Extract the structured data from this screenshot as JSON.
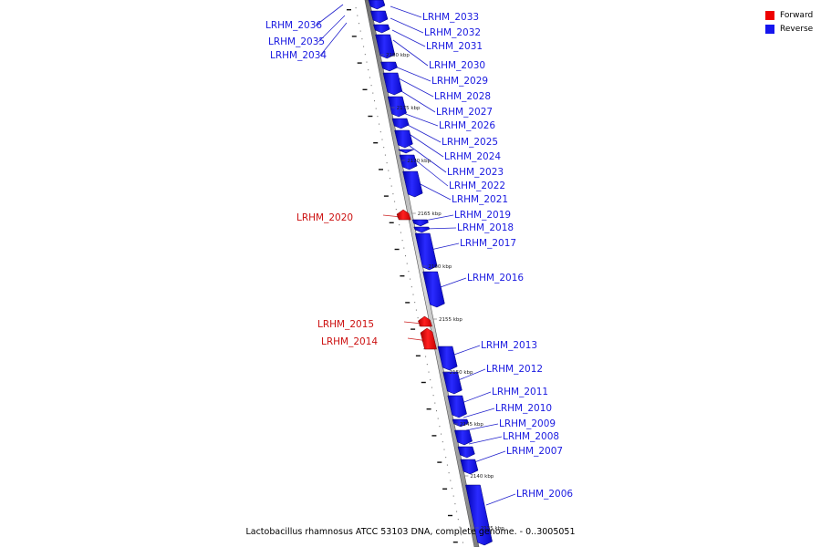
{
  "caption": "Lactobacillus rhamnosus ATCC 53103 DNA, complete genome. - 0..3005051",
  "legend": [
    {
      "label": "Forward",
      "color": "#ee0000"
    },
    {
      "label": "Reverse",
      "color": "#1515ee"
    }
  ],
  "colors": {
    "forward": "#ee0000",
    "forward_leader": "#cc2222",
    "reverse": "#1515ee",
    "reverse_leader": "#2222cc",
    "axis": "#999999"
  },
  "ticks": [
    "2180 kbp",
    "2175 kbp",
    "2170 kbp",
    "2165 kbp",
    "2160 kbp",
    "2155 kbp",
    "2150 kbp",
    "2145 kbp",
    "2140 kbp",
    "2135 kbp"
  ],
  "genes": [
    {
      "label": "LRHM_2036",
      "strand": "reverse"
    },
    {
      "label": "LRHM_2035",
      "strand": "reverse"
    },
    {
      "label": "LRHM_2034",
      "strand": "reverse"
    },
    {
      "label": "LRHM_2033",
      "strand": "reverse"
    },
    {
      "label": "LRHM_2032",
      "strand": "reverse"
    },
    {
      "label": "LRHM_2031",
      "strand": "reverse"
    },
    {
      "label": "LRHM_2030",
      "strand": "reverse"
    },
    {
      "label": "LRHM_2029",
      "strand": "reverse"
    },
    {
      "label": "LRHM_2028",
      "strand": "reverse"
    },
    {
      "label": "LRHM_2027",
      "strand": "reverse"
    },
    {
      "label": "LRHM_2026",
      "strand": "reverse"
    },
    {
      "label": "LRHM_2025",
      "strand": "reverse"
    },
    {
      "label": "LRHM_2024",
      "strand": "reverse"
    },
    {
      "label": "LRHM_2023",
      "strand": "reverse"
    },
    {
      "label": "LRHM_2022",
      "strand": "reverse"
    },
    {
      "label": "LRHM_2021",
      "strand": "reverse"
    },
    {
      "label": "LRHM_2020",
      "strand": "forward"
    },
    {
      "label": "LRHM_2019",
      "strand": "reverse"
    },
    {
      "label": "LRHM_2018",
      "strand": "reverse"
    },
    {
      "label": "LRHM_2017",
      "strand": "reverse"
    },
    {
      "label": "LRHM_2016",
      "strand": "reverse"
    },
    {
      "label": "LRHM_2015",
      "strand": "forward"
    },
    {
      "label": "LRHM_2014",
      "strand": "forward"
    },
    {
      "label": "LRHM_2013",
      "strand": "reverse"
    },
    {
      "label": "LRHM_2012",
      "strand": "reverse"
    },
    {
      "label": "LRHM_2011",
      "strand": "reverse"
    },
    {
      "label": "LRHM_2010",
      "strand": "reverse"
    },
    {
      "label": "LRHM_2009",
      "strand": "reverse"
    },
    {
      "label": "LRHM_2008",
      "strand": "reverse"
    },
    {
      "label": "LRHM_2007",
      "strand": "reverse"
    },
    {
      "label": "LRHM_2006",
      "strand": "reverse"
    }
  ]
}
